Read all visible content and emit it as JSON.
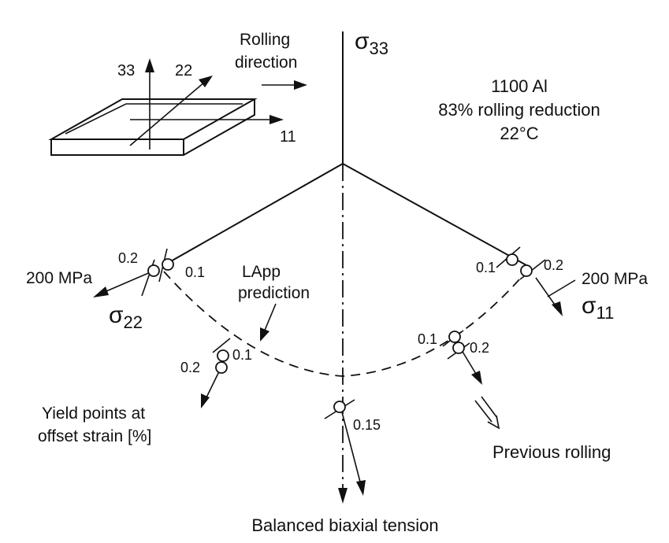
{
  "labels": {
    "sigma33": "σ",
    "sigma33_sub": "33",
    "sigma22": "σ",
    "sigma22_sub": "22",
    "sigma11": "σ",
    "sigma11_sub": "11",
    "rolling_line1": "Rolling",
    "rolling_line2": "direction",
    "axis33": "33",
    "axis22": "22",
    "axis11": "11",
    "material": "1100 Al",
    "reduction": "83% rolling reduction",
    "temperature": "22°C",
    "stress_left": "200 MPa",
    "stress_right": "200 MPa",
    "lapp_line1": "LApp",
    "lapp_line2": "prediction",
    "yield_line1": "Yield points at",
    "yield_line2": "offset strain [%]",
    "previous_rolling": "Previous rolling",
    "balanced": "Balanced biaxial tension"
  },
  "offset_labels": {
    "left_02": "0.2",
    "left_01": "0.1",
    "right_01": "0.1",
    "right_02": "0.2",
    "lowleft_02": "0.2",
    "lowleft_01": "0.1",
    "lowright_01": "0.1",
    "lowright_02": "0.2",
    "bottom_015": "0.15"
  }
}
